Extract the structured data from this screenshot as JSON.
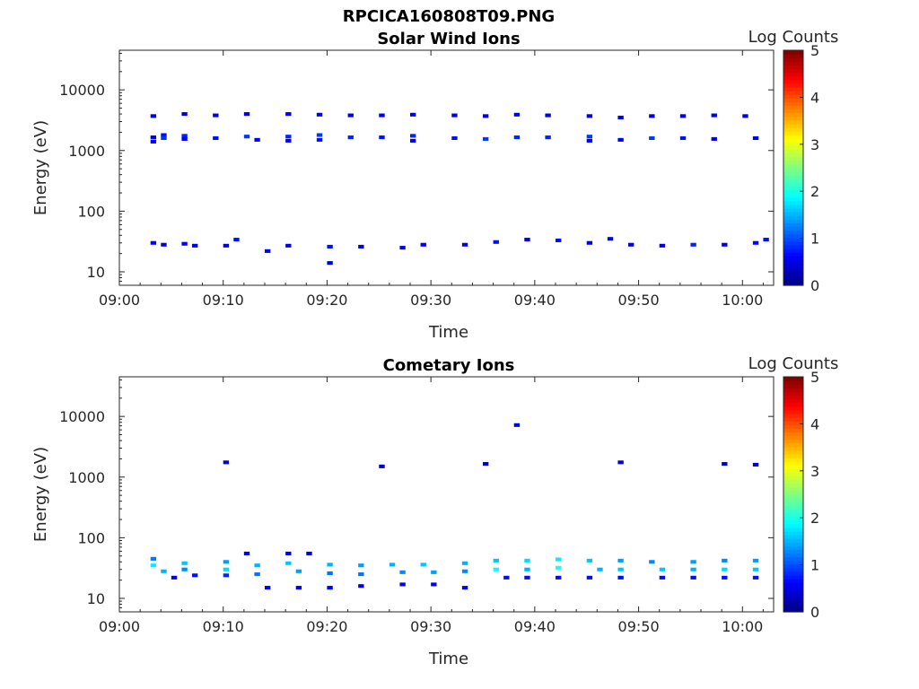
{
  "figure_title": "RPCICA160808T09.PNG",
  "chart_data": [
    {
      "type": "heatmap",
      "title": "Solar Wind Ions",
      "xlabel": "Time",
      "ylabel": "Energy (eV)",
      "yscale": "log",
      "xlim": [
        "09:00",
        "10:03"
      ],
      "ylim": [
        6,
        45000
      ],
      "x_ticks": [
        "09:00",
        "09:10",
        "09:20",
        "09:30",
        "09:40",
        "09:50",
        "10:00"
      ],
      "y_ticks": [
        "10",
        "100",
        "1000",
        "10000"
      ],
      "colorbar": {
        "label": "Log Counts",
        "min": 0,
        "max": 5,
        "ticks": [
          "0",
          "1",
          "2",
          "3",
          "4",
          "5"
        ],
        "colormap": "jet"
      },
      "grid": false,
      "cells": [
        {
          "t": "09:03",
          "e": 3700,
          "v": 0.5
        },
        {
          "t": "09:03",
          "e": 1650,
          "v": 0.5
        },
        {
          "t": "09:03",
          "e": 1400,
          "v": 0.6
        },
        {
          "t": "09:04",
          "e": 1800,
          "v": 0.7
        },
        {
          "t": "09:04",
          "e": 1600,
          "v": 0.9
        },
        {
          "t": "09:06",
          "e": 4000,
          "v": 0.5
        },
        {
          "t": "09:06",
          "e": 1750,
          "v": 0.8
        },
        {
          "t": "09:06",
          "e": 1550,
          "v": 0.6
        },
        {
          "t": "09:09",
          "e": 3800,
          "v": 0.5
        },
        {
          "t": "09:09",
          "e": 1600,
          "v": 0.7
        },
        {
          "t": "09:12",
          "e": 4000,
          "v": 0.5
        },
        {
          "t": "09:12",
          "e": 1700,
          "v": 0.9
        },
        {
          "t": "09:13",
          "e": 1500,
          "v": 0.6
        },
        {
          "t": "09:16",
          "e": 4000,
          "v": 0.5
        },
        {
          "t": "09:16",
          "e": 1700,
          "v": 0.8
        },
        {
          "t": "09:16",
          "e": 1450,
          "v": 0.6
        },
        {
          "t": "09:19",
          "e": 3900,
          "v": 0.5
        },
        {
          "t": "09:19",
          "e": 1800,
          "v": 0.9
        },
        {
          "t": "09:19",
          "e": 1500,
          "v": 0.7
        },
        {
          "t": "09:22",
          "e": 3800,
          "v": 0.5
        },
        {
          "t": "09:22",
          "e": 1650,
          "v": 0.8
        },
        {
          "t": "09:25",
          "e": 3800,
          "v": 0.5
        },
        {
          "t": "09:25",
          "e": 1650,
          "v": 0.7
        },
        {
          "t": "09:28",
          "e": 3900,
          "v": 0.5
        },
        {
          "t": "09:28",
          "e": 1750,
          "v": 0.8
        },
        {
          "t": "09:28",
          "e": 1450,
          "v": 0.6
        },
        {
          "t": "09:32",
          "e": 3800,
          "v": 0.5
        },
        {
          "t": "09:32",
          "e": 1600,
          "v": 0.7
        },
        {
          "t": "09:35",
          "e": 3700,
          "v": 0.5
        },
        {
          "t": "09:35",
          "e": 1550,
          "v": 0.9
        },
        {
          "t": "09:38",
          "e": 3900,
          "v": 0.5
        },
        {
          "t": "09:38",
          "e": 1650,
          "v": 0.8
        },
        {
          "t": "09:41",
          "e": 3800,
          "v": 0.5
        },
        {
          "t": "09:41",
          "e": 1650,
          "v": 0.8
        },
        {
          "t": "09:45",
          "e": 3700,
          "v": 0.5
        },
        {
          "t": "09:45",
          "e": 1700,
          "v": 0.9
        },
        {
          "t": "09:45",
          "e": 1450,
          "v": 0.6
        },
        {
          "t": "09:48",
          "e": 3500,
          "v": 0.5
        },
        {
          "t": "09:48",
          "e": 1500,
          "v": 0.6
        },
        {
          "t": "09:51",
          "e": 3700,
          "v": 0.5
        },
        {
          "t": "09:51",
          "e": 1600,
          "v": 0.9
        },
        {
          "t": "09:54",
          "e": 3700,
          "v": 0.5
        },
        {
          "t": "09:54",
          "e": 1600,
          "v": 0.7
        },
        {
          "t": "09:57",
          "e": 3800,
          "v": 0.5
        },
        {
          "t": "09:57",
          "e": 1550,
          "v": 0.6
        },
        {
          "t": "10:00",
          "e": 3700,
          "v": 0.5
        },
        {
          "t": "10:01",
          "e": 1600,
          "v": 0.6
        },
        {
          "t": "09:03",
          "e": 30,
          "v": 0.6
        },
        {
          "t": "09:04",
          "e": 28,
          "v": 0.5
        },
        {
          "t": "09:06",
          "e": 29,
          "v": 0.6
        },
        {
          "t": "09:07",
          "e": 27,
          "v": 0.5
        },
        {
          "t": "09:10",
          "e": 27,
          "v": 0.5
        },
        {
          "t": "09:11",
          "e": 34,
          "v": 0.7
        },
        {
          "t": "09:14",
          "e": 22,
          "v": 0.6
        },
        {
          "t": "09:16",
          "e": 27,
          "v": 0.5
        },
        {
          "t": "09:20",
          "e": 26,
          "v": 0.7
        },
        {
          "t": "09:20",
          "e": 14,
          "v": 0.5
        },
        {
          "t": "09:23",
          "e": 26,
          "v": 0.5
        },
        {
          "t": "09:27",
          "e": 25,
          "v": 0.6
        },
        {
          "t": "09:29",
          "e": 28,
          "v": 0.6
        },
        {
          "t": "09:33",
          "e": 28,
          "v": 0.5
        },
        {
          "t": "09:36",
          "e": 31,
          "v": 0.7
        },
        {
          "t": "09:39",
          "e": 34,
          "v": 0.5
        },
        {
          "t": "09:42",
          "e": 33,
          "v": 0.7
        },
        {
          "t": "09:45",
          "e": 30,
          "v": 0.5
        },
        {
          "t": "09:47",
          "e": 35,
          "v": 0.5
        },
        {
          "t": "09:49",
          "e": 28,
          "v": 0.5
        },
        {
          "t": "09:52",
          "e": 27,
          "v": 0.6
        },
        {
          "t": "09:55",
          "e": 28,
          "v": 0.8
        },
        {
          "t": "09:58",
          "e": 28,
          "v": 0.5
        },
        {
          "t": "10:01",
          "e": 30,
          "v": 0.6
        },
        {
          "t": "10:02",
          "e": 34,
          "v": 0.7
        }
      ]
    },
    {
      "type": "heatmap",
      "title": "Cometary Ions",
      "xlabel": "Time",
      "ylabel": "Energy (eV)",
      "yscale": "log",
      "xlim": [
        "09:00",
        "10:03"
      ],
      "ylim": [
        6,
        45000
      ],
      "x_ticks": [
        "09:00",
        "09:10",
        "09:20",
        "09:30",
        "09:40",
        "09:50",
        "10:00"
      ],
      "y_ticks": [
        "10",
        "100",
        "1000",
        "10000"
      ],
      "colorbar": {
        "label": "Log Counts",
        "min": 0,
        "max": 5,
        "ticks": [
          "0",
          "1",
          "2",
          "3",
          "4",
          "5"
        ],
        "colormap": "jet"
      },
      "grid": false,
      "cells": [
        {
          "t": "09:10",
          "e": 1750,
          "v": 0.4
        },
        {
          "t": "09:25",
          "e": 1500,
          "v": 0.4
        },
        {
          "t": "09:35",
          "e": 1650,
          "v": 0.4
        },
        {
          "t": "09:38",
          "e": 7200,
          "v": 0.4
        },
        {
          "t": "09:48",
          "e": 1750,
          "v": 0.4
        },
        {
          "t": "09:58",
          "e": 1650,
          "v": 0.4
        },
        {
          "t": "10:01",
          "e": 1600,
          "v": 0.4
        },
        {
          "t": "09:12",
          "e": 55,
          "v": 0.5
        },
        {
          "t": "09:16",
          "e": 55,
          "v": 0.5
        },
        {
          "t": "09:18",
          "e": 55,
          "v": 0.5
        },
        {
          "t": "09:03",
          "e": 45,
          "v": 1.2
        },
        {
          "t": "09:03",
          "e": 35,
          "v": 1.8
        },
        {
          "t": "09:04",
          "e": 28,
          "v": 1.5
        },
        {
          "t": "09:05",
          "e": 22,
          "v": 0.6
        },
        {
          "t": "09:06",
          "e": 38,
          "v": 1.6
        },
        {
          "t": "09:06",
          "e": 30,
          "v": 1.3
        },
        {
          "t": "09:07",
          "e": 24,
          "v": 0.7
        },
        {
          "t": "09:10",
          "e": 40,
          "v": 1.4
        },
        {
          "t": "09:10",
          "e": 30,
          "v": 1.7
        },
        {
          "t": "09:10",
          "e": 24,
          "v": 0.8
        },
        {
          "t": "09:13",
          "e": 35,
          "v": 1.5
        },
        {
          "t": "09:13",
          "e": 25,
          "v": 1.2
        },
        {
          "t": "09:14",
          "e": 15,
          "v": 0.6
        },
        {
          "t": "09:16",
          "e": 38,
          "v": 1.6
        },
        {
          "t": "09:17",
          "e": 28,
          "v": 1.4
        },
        {
          "t": "09:17",
          "e": 15,
          "v": 0.6
        },
        {
          "t": "09:20",
          "e": 36,
          "v": 1.5
        },
        {
          "t": "09:20",
          "e": 26,
          "v": 1.2
        },
        {
          "t": "09:20",
          "e": 15,
          "v": 0.6
        },
        {
          "t": "09:23",
          "e": 35,
          "v": 1.4
        },
        {
          "t": "09:23",
          "e": 25,
          "v": 1.2
        },
        {
          "t": "09:23",
          "e": 16,
          "v": 0.6
        },
        {
          "t": "09:26",
          "e": 36,
          "v": 1.5
        },
        {
          "t": "09:27",
          "e": 27,
          "v": 1.3
        },
        {
          "t": "09:27",
          "e": 17,
          "v": 0.6
        },
        {
          "t": "09:29",
          "e": 36,
          "v": 1.6
        },
        {
          "t": "09:30",
          "e": 27,
          "v": 1.4
        },
        {
          "t": "09:30",
          "e": 17,
          "v": 0.6
        },
        {
          "t": "09:33",
          "e": 38,
          "v": 1.5
        },
        {
          "t": "09:33",
          "e": 28,
          "v": 1.3
        },
        {
          "t": "09:33",
          "e": 15,
          "v": 0.6
        },
        {
          "t": "09:36",
          "e": 42,
          "v": 1.6
        },
        {
          "t": "09:36",
          "e": 30,
          "v": 1.9
        },
        {
          "t": "09:37",
          "e": 22,
          "v": 0.7
        },
        {
          "t": "09:39",
          "e": 42,
          "v": 1.7
        },
        {
          "t": "09:39",
          "e": 30,
          "v": 1.5
        },
        {
          "t": "09:39",
          "e": 22,
          "v": 0.7
        },
        {
          "t": "09:42",
          "e": 44,
          "v": 1.8
        },
        {
          "t": "09:42",
          "e": 32,
          "v": 2.0
        },
        {
          "t": "09:42",
          "e": 22,
          "v": 0.7
        },
        {
          "t": "09:45",
          "e": 42,
          "v": 1.6
        },
        {
          "t": "09:46",
          "e": 30,
          "v": 1.5
        },
        {
          "t": "09:45",
          "e": 22,
          "v": 0.7
        },
        {
          "t": "09:48",
          "e": 42,
          "v": 1.4
        },
        {
          "t": "09:48",
          "e": 30,
          "v": 1.6
        },
        {
          "t": "09:48",
          "e": 22,
          "v": 0.7
        },
        {
          "t": "09:51",
          "e": 40,
          "v": 1.3
        },
        {
          "t": "09:52",
          "e": 30,
          "v": 1.6
        },
        {
          "t": "09:52",
          "e": 22,
          "v": 0.7
        },
        {
          "t": "09:55",
          "e": 40,
          "v": 1.4
        },
        {
          "t": "09:55",
          "e": 30,
          "v": 1.5
        },
        {
          "t": "09:55",
          "e": 22,
          "v": 0.7
        },
        {
          "t": "09:58",
          "e": 42,
          "v": 1.3
        },
        {
          "t": "09:58",
          "e": 30,
          "v": 1.7
        },
        {
          "t": "09:58",
          "e": 22,
          "v": 0.7
        },
        {
          "t": "10:01",
          "e": 42,
          "v": 1.4
        },
        {
          "t": "10:01",
          "e": 30,
          "v": 1.6
        },
        {
          "t": "10:01",
          "e": 22,
          "v": 0.7
        }
      ]
    }
  ]
}
